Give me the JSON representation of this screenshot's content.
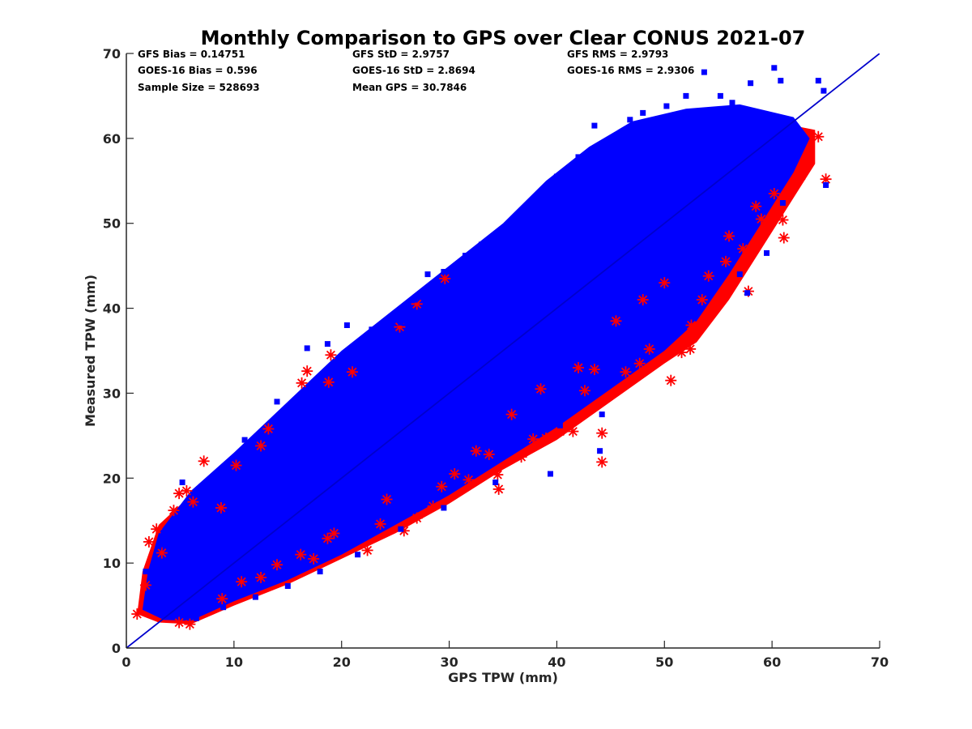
{
  "chart_data": {
    "type": "scatter",
    "title": "Monthly Comparison to GPS over Clear CONUS 2021-07",
    "xlabel": "GPS TPW (mm)",
    "ylabel": "Measured TPW (mm)",
    "xlim": [
      0,
      70
    ],
    "ylim": [
      0,
      70
    ],
    "xticks": [
      0,
      10,
      20,
      30,
      40,
      50,
      60,
      70
    ],
    "yticks": [
      0,
      10,
      20,
      30,
      40,
      50,
      60,
      70
    ],
    "grid": false,
    "reference_line": {
      "name": "1:1 line",
      "x": [
        0,
        70
      ],
      "y": [
        0,
        70
      ],
      "color": "#0000cc"
    },
    "stats": {
      "gfs_bias": "GFS Bias = 0.14751",
      "goes_bias": "GOES-16 Bias = 0.596",
      "sample_size": "Sample Size = 528693",
      "gfs_std": "GFS StD = 2.9757",
      "goes_std": "GOES-16 StD = 2.8694",
      "mean_gps": "Mean GPS = 30.7846",
      "gfs_rms": "GFS RMS = 2.9793",
      "goes_rms": "GOES-16 RMS = 2.9306"
    },
    "series": [
      {
        "name": "GFS",
        "marker": "asterisk",
        "color": "#ff0000",
        "points": [
          [
            1.0,
            4.0
          ],
          [
            1.8,
            7.4
          ],
          [
            2.1,
            12.5
          ],
          [
            2.8,
            14.0
          ],
          [
            3.3,
            11.2
          ],
          [
            4.4,
            16.2
          ],
          [
            4.9,
            18.2
          ],
          [
            5.6,
            18.5
          ],
          [
            6.2,
            17.2
          ],
          [
            7.2,
            22.0
          ],
          [
            4.9,
            3.0
          ],
          [
            5.9,
            2.8
          ],
          [
            8.8,
            16.5
          ],
          [
            10.2,
            21.5
          ],
          [
            12.5,
            23.8
          ],
          [
            13.2,
            25.8
          ],
          [
            16.3,
            31.2
          ],
          [
            16.8,
            32.6
          ],
          [
            19.0,
            34.5
          ],
          [
            18.8,
            31.3
          ],
          [
            21.0,
            32.5
          ],
          [
            25.4,
            37.8
          ],
          [
            27.0,
            40.5
          ],
          [
            29.6,
            43.5
          ],
          [
            8.9,
            5.8
          ],
          [
            10.7,
            7.8
          ],
          [
            12.5,
            8.3
          ],
          [
            14.0,
            9.8
          ],
          [
            16.2,
            11.0
          ],
          [
            17.4,
            10.5
          ],
          [
            18.7,
            12.9
          ],
          [
            19.3,
            13.5
          ],
          [
            22.4,
            11.5
          ],
          [
            23.6,
            14.6
          ],
          [
            24.2,
            17.5
          ],
          [
            25.8,
            13.8
          ],
          [
            27.0,
            15.3
          ],
          [
            28.5,
            16.7
          ],
          [
            29.3,
            19.0
          ],
          [
            30.5,
            20.5
          ],
          [
            31.8,
            19.8
          ],
          [
            32.5,
            23.2
          ],
          [
            33.7,
            22.8
          ],
          [
            34.6,
            18.7
          ],
          [
            34.5,
            20.4
          ],
          [
            36.7,
            22.5
          ],
          [
            37.8,
            24.6
          ],
          [
            39.0,
            24.7
          ],
          [
            40.3,
            25.5
          ],
          [
            41.5,
            25.5
          ],
          [
            42.6,
            30.3
          ],
          [
            43.5,
            32.8
          ],
          [
            44.2,
            21.9
          ],
          [
            44.2,
            25.3
          ],
          [
            46.4,
            32.5
          ],
          [
            47.7,
            33.5
          ],
          [
            48.6,
            35.2
          ],
          [
            50.6,
            31.5
          ],
          [
            51.6,
            34.8
          ],
          [
            52.4,
            35.2
          ],
          [
            52.5,
            38.0
          ],
          [
            53.5,
            41.0
          ],
          [
            54.1,
            43.8
          ],
          [
            54.9,
            40.6
          ],
          [
            55.7,
            45.5
          ],
          [
            57.3,
            47.0
          ],
          [
            57.8,
            42.0
          ],
          [
            59.0,
            50.5
          ],
          [
            61.1,
            48.3
          ],
          [
            61.0,
            50.4
          ],
          [
            61.8,
            54.0
          ],
          [
            62.7,
            55.6
          ],
          [
            63.0,
            56.8
          ],
          [
            64.3,
            60.2
          ],
          [
            65.0,
            55.2
          ],
          [
            56.0,
            48.5
          ],
          [
            58.5,
            52.0
          ],
          [
            60.2,
            53.5
          ],
          [
            45.5,
            38.5
          ],
          [
            48.0,
            41.0
          ],
          [
            35.8,
            27.5
          ],
          [
            38.5,
            30.5
          ],
          [
            42.0,
            33.0
          ],
          [
            50.0,
            43.0
          ]
        ]
      },
      {
        "name": "GOES-16",
        "marker": "square",
        "color": "#0000ff",
        "points": [
          [
            5.2,
            19.5
          ],
          [
            8.2,
            20.0
          ],
          [
            11.0,
            24.5
          ],
          [
            14.0,
            29.0
          ],
          [
            16.8,
            35.3
          ],
          [
            18.7,
            35.8
          ],
          [
            20.5,
            38.0
          ],
          [
            22.8,
            37.5
          ],
          [
            25.5,
            38.3
          ],
          [
            26.8,
            41.0
          ],
          [
            29.5,
            44.3
          ],
          [
            33.0,
            47.5
          ],
          [
            37.0,
            51.0
          ],
          [
            40.0,
            55.5
          ],
          [
            42.0,
            57.8
          ],
          [
            43.5,
            61.5
          ],
          [
            46.8,
            62.2
          ],
          [
            48.0,
            63.0
          ],
          [
            50.2,
            63.8
          ],
          [
            52.0,
            65.0
          ],
          [
            53.7,
            67.8
          ],
          [
            55.2,
            65.0
          ],
          [
            56.3,
            64.2
          ],
          [
            58.0,
            66.5
          ],
          [
            60.2,
            68.3
          ],
          [
            60.8,
            66.8
          ],
          [
            64.8,
            65.6
          ],
          [
            64.3,
            66.8
          ],
          [
            65.0,
            54.5
          ],
          [
            61.0,
            52.4
          ],
          [
            57.7,
            41.8
          ],
          [
            50.8,
            40.7
          ],
          [
            48.2,
            36.9
          ],
          [
            47.0,
            34.5
          ],
          [
            45.5,
            32.8
          ],
          [
            44.2,
            27.5
          ],
          [
            44.0,
            23.2
          ],
          [
            39.4,
            20.5
          ],
          [
            40.3,
            26.2
          ],
          [
            36.5,
            25.0
          ],
          [
            33.0,
            22.0
          ],
          [
            34.3,
            19.5
          ],
          [
            29.5,
            16.5
          ],
          [
            25.5,
            14.0
          ],
          [
            21.5,
            11.0
          ],
          [
            18.0,
            9.0
          ],
          [
            15.0,
            7.3
          ],
          [
            12.0,
            6.0
          ],
          [
            9.0,
            4.8
          ],
          [
            6.5,
            3.5
          ],
          [
            4.5,
            3.8
          ],
          [
            2.5,
            5.5
          ],
          [
            1.8,
            9.0
          ],
          [
            3.0,
            12.0
          ],
          [
            35.5,
            49.2
          ],
          [
            38.0,
            50.2
          ],
          [
            31.5,
            46.2
          ],
          [
            28.0,
            44.0
          ],
          [
            57.0,
            44.0
          ],
          [
            59.5,
            46.5
          ]
        ]
      }
    ]
  }
}
